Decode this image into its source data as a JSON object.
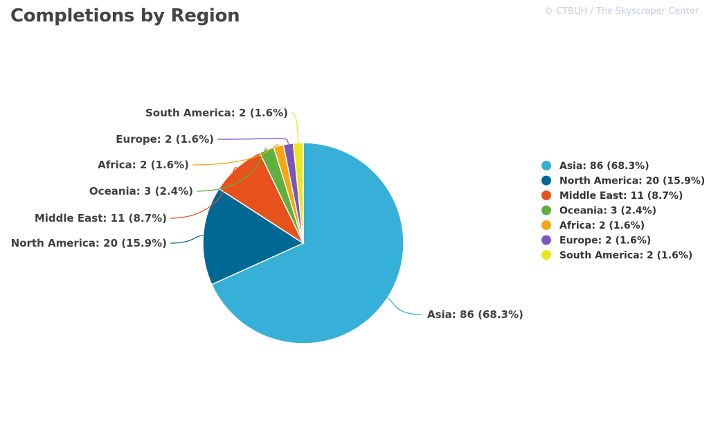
{
  "chart_data": {
    "type": "pie",
    "title": "Completions by Region",
    "credit": "© CTBUH / The Skyscraper Center",
    "legend_position": "right",
    "slices": [
      {
        "name": "Asia",
        "value": 86,
        "percent": 68.3,
        "label": "Asia: 86 (68.3%)",
        "color": "#36b0d8"
      },
      {
        "name": "North America",
        "value": 20,
        "percent": 15.9,
        "label": "North America: 20 (15.9%)",
        "color": "#006895"
      },
      {
        "name": "Middle East",
        "value": 11,
        "percent": 8.7,
        "label": "Middle East: 11 (8.7%)",
        "color": "#e7511c"
      },
      {
        "name": "Oceania",
        "value": 3,
        "percent": 2.4,
        "label": "Oceania: 3 (2.4%)",
        "color": "#5fb03d"
      },
      {
        "name": "Africa",
        "value": 2,
        "percent": 1.6,
        "label": "Africa: 2 (1.6%)",
        "color": "#f9a512"
      },
      {
        "name": "Europe",
        "value": 2,
        "percent": 1.6,
        "label": "Europe: 2 (1.6%)",
        "color": "#7b55b8"
      },
      {
        "name": "South America",
        "value": 2,
        "percent": 1.6,
        "label": "South America: 2 (1.6%)",
        "color": "#ece61c"
      }
    ]
  }
}
